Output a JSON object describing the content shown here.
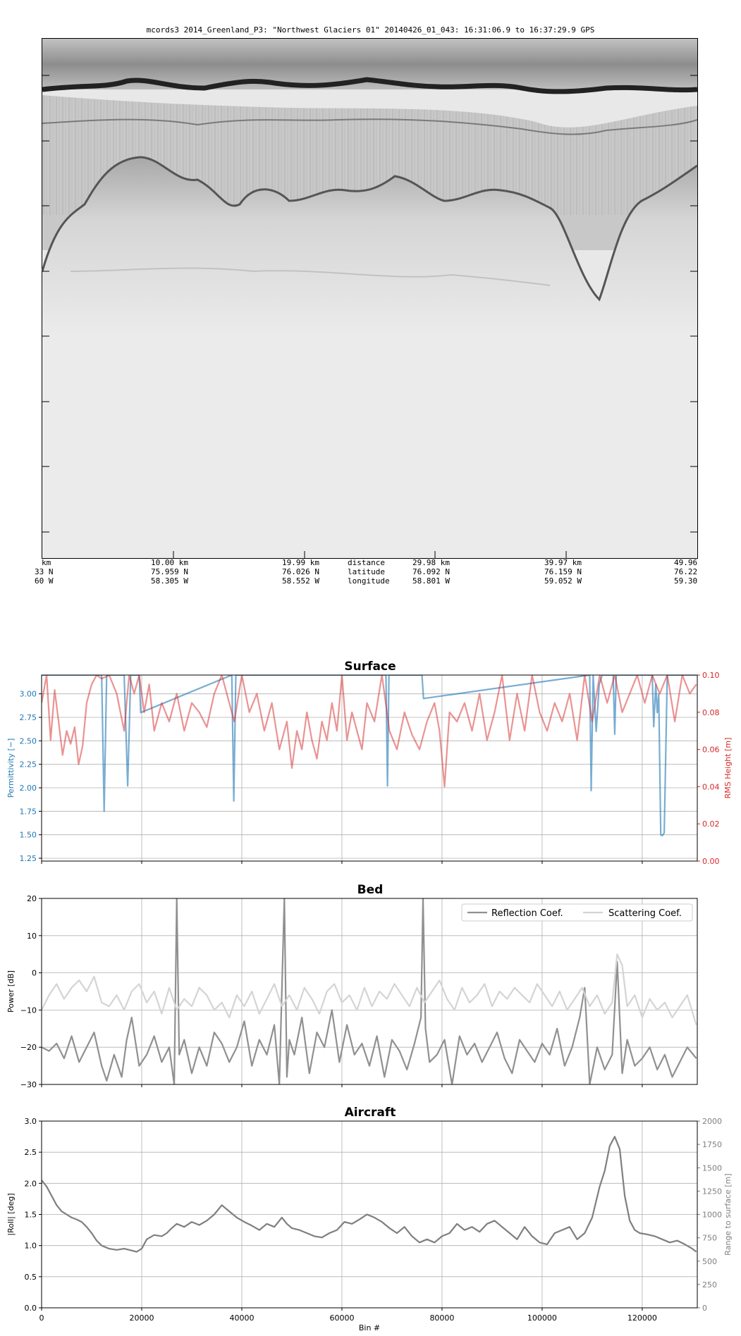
{
  "radargram": {
    "title": "mcords3 2014_Greenland_P3: \"Northwest Glaciers 01\"  20140426_01_043: 16:31:06.9 to 16:37:29.9 GPS",
    "distance_ticks": [
      "km",
      "10.00 km",
      "19.99 km",
      "29.98 km",
      "39.97 km",
      "49.96"
    ],
    "latitude_ticks": [
      "33 N",
      "75.959 N",
      "76.026 N",
      "76.092 N",
      "76.159 N",
      "76.22"
    ],
    "longitude_ticks": [
      "60 W",
      "58.305 W",
      "58.552 W",
      "58.801 W",
      "59.052 W",
      "59.30"
    ],
    "row_labels": [
      "distance",
      "latitude",
      "longitude"
    ]
  },
  "chart_data": [
    {
      "type": "line",
      "title": "Surface",
      "xlabel": "",
      "ylabel": "Permittivity [−]",
      "ylabel_right": "RMS Height [m]",
      "xlim": [
        0,
        131000
      ],
      "ylim": [
        1.22,
        3.2
      ],
      "ylim_right": [
        0.0,
        0.1
      ],
      "yticks": [
        "1.25",
        "1.50",
        "1.75",
        "2.00",
        "2.25",
        "2.50",
        "2.75",
        "3.00"
      ],
      "yticks_right": [
        "0.00",
        "0.02",
        "0.04",
        "0.06",
        "0.08",
        "0.10"
      ],
      "grid": true,
      "colors": {
        "permittivity": "#1f77b4",
        "rms": "#d62728"
      },
      "series": [
        {
          "axis": "left",
          "x": [
            0,
            12000,
            12500,
            13000,
            16500,
            17200,
            17800,
            19500,
            19800,
            38000,
            38400,
            38800,
            68800,
            69100,
            69400,
            76000,
            76300,
            109500,
            109800,
            110200,
            110800,
            111400,
            112000,
            114200,
            114500,
            114800,
            122000,
            122300,
            122700,
            123000,
            123300,
            123700,
            124000,
            124400,
            125000,
            130800
          ],
          "values": [
            3.2,
            3.2,
            1.75,
            3.2,
            3.2,
            2.02,
            3.2,
            3.2,
            2.8,
            3.2,
            1.86,
            3.2,
            3.2,
            2.02,
            3.2,
            3.2,
            2.95,
            3.2,
            1.97,
            3.2,
            2.6,
            3.1,
            3.2,
            3.2,
            2.57,
            3.2,
            3.2,
            2.65,
            3.1,
            2.8,
            3.0,
            1.5,
            1.49,
            1.52,
            3.2,
            3.2
          ]
        },
        {
          "axis": "right",
          "x": [
            0,
            1000,
            1800,
            2600,
            3400,
            4200,
            5000,
            5800,
            6600,
            7400,
            8200,
            9000,
            10000,
            11000,
            12000,
            13500,
            15000,
            16500,
            17500,
            18500,
            19500,
            20500,
            21500,
            22500,
            24000,
            25500,
            27000,
            28500,
            30000,
            31500,
            33000,
            34500,
            36000,
            37500,
            38500,
            40000,
            41500,
            43000,
            44500,
            46000,
            47500,
            49000,
            50000,
            51000,
            52000,
            53000,
            54000,
            55000,
            56000,
            57000,
            58000,
            59000,
            60000,
            61000,
            62000,
            63000,
            64000,
            65000,
            66500,
            68000,
            69500,
            71000,
            72500,
            74000,
            75500,
            77000,
            78500,
            79500,
            80500,
            81500,
            83000,
            84500,
            86000,
            87500,
            89000,
            90500,
            92000,
            93500,
            95000,
            96500,
            98000,
            99500,
            101000,
            102500,
            104000,
            105500,
            107000,
            108500,
            110000,
            111500,
            113000,
            114500,
            116000,
            117500,
            119000,
            120500,
            122000,
            123500,
            125000,
            126500,
            128000,
            129500,
            130800
          ],
          "values": [
            0.085,
            0.1,
            0.065,
            0.092,
            0.075,
            0.057,
            0.07,
            0.063,
            0.072,
            0.052,
            0.062,
            0.085,
            0.095,
            0.1,
            0.098,
            0.1,
            0.09,
            0.07,
            0.1,
            0.09,
            0.1,
            0.08,
            0.095,
            0.07,
            0.085,
            0.075,
            0.09,
            0.07,
            0.085,
            0.08,
            0.072,
            0.09,
            0.1,
            0.085,
            0.075,
            0.1,
            0.08,
            0.09,
            0.07,
            0.085,
            0.06,
            0.075,
            0.05,
            0.07,
            0.06,
            0.08,
            0.065,
            0.055,
            0.075,
            0.065,
            0.085,
            0.07,
            0.1,
            0.065,
            0.08,
            0.07,
            0.06,
            0.085,
            0.075,
            0.1,
            0.07,
            0.06,
            0.08,
            0.068,
            0.06,
            0.075,
            0.085,
            0.07,
            0.04,
            0.08,
            0.075,
            0.085,
            0.07,
            0.09,
            0.065,
            0.08,
            0.1,
            0.065,
            0.09,
            0.07,
            0.1,
            0.08,
            0.07,
            0.085,
            0.075,
            0.09,
            0.065,
            0.1,
            0.075,
            0.1,
            0.085,
            0.1,
            0.08,
            0.09,
            0.1,
            0.085,
            0.1,
            0.09,
            0.1,
            0.075,
            0.1,
            0.09,
            0.095
          ]
        }
      ]
    },
    {
      "type": "line",
      "title": "Bed",
      "xlabel": "",
      "ylabel": "Power [dB]",
      "xlim": [
        0,
        131000
      ],
      "ylim": [
        -30,
        20
      ],
      "yticks": [
        "−30",
        "−20",
        "−10",
        "0",
        "10",
        "20"
      ],
      "grid": true,
      "legend": "top-right",
      "colors": {
        "reflection": "#909090",
        "scattering": "#d4d4d4"
      },
      "series": [
        {
          "name": "Reflection Coef.",
          "x": [
            0,
            1500,
            3000,
            4500,
            6000,
            7500,
            9000,
            10500,
            12000,
            13000,
            14500,
            16000,
            17000,
            18000,
            19500,
            21000,
            22500,
            24000,
            25500,
            26500,
            27000,
            27500,
            28500,
            30000,
            31500,
            33000,
            34500,
            36000,
            37500,
            39000,
            40500,
            42000,
            43500,
            45000,
            46500,
            47500,
            48500,
            49000,
            49500,
            50500,
            52000,
            53500,
            55000,
            56500,
            58000,
            59500,
            61000,
            62500,
            64000,
            65500,
            67000,
            68500,
            70000,
            71500,
            73000,
            74500,
            75800,
            76200,
            76700,
            77500,
            79000,
            80500,
            82000,
            83500,
            85000,
            86500,
            88000,
            89500,
            91000,
            92500,
            94000,
            95500,
            97000,
            98500,
            100000,
            101500,
            103000,
            104500,
            106000,
            107500,
            108500,
            109500,
            111000,
            112500,
            114000,
            115000,
            116000,
            117000,
            118500,
            120000,
            121500,
            123000,
            124500,
            126000,
            127500,
            129000,
            130800
          ],
          "values": [
            -20,
            -21,
            -19,
            -23,
            -17,
            -24,
            -20,
            -16,
            -25,
            -29,
            -22,
            -28,
            -18,
            -12,
            -25,
            -22,
            -17,
            -24,
            -20,
            -30,
            20,
            -22,
            -18,
            -27,
            -20,
            -25,
            -16,
            -19,
            -24,
            -20,
            -13,
            -25,
            -18,
            -22,
            -14,
            -30,
            20,
            -28,
            -18,
            -22,
            -12,
            -27,
            -16,
            -20,
            -10,
            -24,
            -14,
            -22,
            -19,
            -25,
            -17,
            -28,
            -18,
            -21,
            -26,
            -19,
            -12,
            20,
            -15,
            -24,
            -22,
            -18,
            -30,
            -17,
            -22,
            -19,
            -24,
            -20,
            -16,
            -23,
            -27,
            -18,
            -21,
            -24,
            -19,
            -22,
            -15,
            -25,
            -20,
            -12,
            -4,
            -30,
            -20,
            -26,
            -22,
            3,
            -27,
            -18,
            -25,
            -23,
            -20,
            -26,
            -22,
            -28,
            -24,
            -20,
            -23
          ]
        },
        {
          "name": "Scattering Coef.",
          "x": [
            0,
            1500,
            3000,
            4500,
            6000,
            7500,
            9000,
            10500,
            12000,
            13500,
            15000,
            16500,
            18000,
            19500,
            21000,
            22500,
            24000,
            25500,
            27000,
            28500,
            30000,
            31500,
            33000,
            34500,
            36000,
            37500,
            39000,
            40500,
            42000,
            43500,
            45000,
            46500,
            48000,
            49500,
            51000,
            52500,
            54000,
            55500,
            57000,
            58500,
            60000,
            61500,
            63000,
            64500,
            66000,
            67500,
            69000,
            70500,
            72000,
            73500,
            75000,
            76500,
            78000,
            79500,
            81000,
            82500,
            84000,
            85500,
            87000,
            88500,
            90000,
            91500,
            93000,
            94500,
            96000,
            97500,
            99000,
            100500,
            102000,
            103500,
            105000,
            106500,
            108000,
            109500,
            111000,
            112500,
            114000,
            115000,
            116000,
            117000,
            118500,
            120000,
            121500,
            123000,
            124500,
            126000,
            127500,
            129000,
            130800
          ],
          "values": [
            -10,
            -6,
            -3,
            -7,
            -4,
            -2,
            -5,
            -1,
            -8,
            -9,
            -6,
            -10,
            -5,
            -3,
            -8,
            -5,
            -11,
            -4,
            -10,
            -7,
            -9,
            -4,
            -6,
            -10,
            -8,
            -12,
            -6,
            -9,
            -5,
            -11,
            -7,
            -3,
            -9,
            -6,
            -10,
            -4,
            -7,
            -11,
            -5,
            -3,
            -8,
            -6,
            -10,
            -4,
            -9,
            -5,
            -7,
            -3,
            -6,
            -9,
            -4,
            -8,
            -5,
            -2,
            -7,
            -10,
            -4,
            -8,
            -6,
            -3,
            -9,
            -5,
            -7,
            -4,
            -6,
            -8,
            -3,
            -6,
            -9,
            -5,
            -10,
            -7,
            -4,
            -9,
            -6,
            -11,
            -8,
            5,
            2,
            -9,
            -6,
            -12,
            -7,
            -10,
            -8,
            -12,
            -9,
            -6,
            -14
          ]
        }
      ]
    },
    {
      "type": "line",
      "title": "Aircraft",
      "xlabel": "Bin #",
      "ylabel": "|Roll| [deg]",
      "ylabel_right": "Range to surface [m]",
      "xlim": [
        0,
        131000
      ],
      "ylim": [
        0,
        3.0
      ],
      "ylim_right": [
        0,
        2000
      ],
      "xticks": [
        "0",
        "20000",
        "40000",
        "60000",
        "80000",
        "100000",
        "120000"
      ],
      "yticks": [
        "0.0",
        "0.5",
        "1.0",
        "1.5",
        "2.0",
        "2.5",
        "3.0"
      ],
      "yticks_right": [
        "0",
        "250",
        "500",
        "750",
        "1000",
        "1250",
        "1500",
        "1750",
        "2000"
      ],
      "grid": true,
      "colors": {
        "roll": "#7f7f7f"
      },
      "series": [
        {
          "axis": "left",
          "x": [
            0,
            1000,
            2000,
            3000,
            4000,
            5000,
            6000,
            7000,
            8000,
            9000,
            10000,
            11000,
            12000,
            13500,
            15000,
            16500,
            18000,
            19000,
            20000,
            21000,
            22500,
            24000,
            25000,
            26000,
            27000,
            28500,
            30000,
            31500,
            33000,
            34500,
            36000,
            37500,
            39000,
            40500,
            42000,
            43500,
            45000,
            46500,
            48000,
            49000,
            50000,
            51500,
            53000,
            54500,
            56000,
            57500,
            59000,
            60500,
            62000,
            63500,
            65000,
            66500,
            68000,
            69500,
            71000,
            72500,
            74000,
            75500,
            77000,
            78500,
            80000,
            81500,
            83000,
            84500,
            86000,
            87500,
            89000,
            90500,
            92000,
            93500,
            95000,
            96500,
            98000,
            99500,
            101000,
            102500,
            104000,
            105500,
            107000,
            108500,
            110000,
            111500,
            112500,
            113500,
            114500,
            115500,
            116500,
            117500,
            118500,
            119500,
            121000,
            122500,
            124000,
            125500,
            127000,
            128500,
            130000,
            130800
          ],
          "values": [
            2.05,
            1.95,
            1.8,
            1.65,
            1.55,
            1.5,
            1.45,
            1.42,
            1.38,
            1.3,
            1.2,
            1.08,
            1.0,
            0.95,
            0.93,
            0.95,
            0.92,
            0.9,
            0.95,
            1.1,
            1.17,
            1.15,
            1.2,
            1.28,
            1.35,
            1.3,
            1.38,
            1.33,
            1.4,
            1.5,
            1.65,
            1.55,
            1.45,
            1.38,
            1.32,
            1.25,
            1.35,
            1.3,
            1.45,
            1.35,
            1.28,
            1.25,
            1.2,
            1.15,
            1.13,
            1.2,
            1.25,
            1.38,
            1.35,
            1.42,
            1.5,
            1.45,
            1.38,
            1.28,
            1.2,
            1.3,
            1.15,
            1.05,
            1.1,
            1.05,
            1.15,
            1.2,
            1.35,
            1.25,
            1.3,
            1.22,
            1.35,
            1.4,
            1.3,
            1.2,
            1.1,
            1.3,
            1.15,
            1.05,
            1.02,
            1.2,
            1.25,
            1.3,
            1.1,
            1.2,
            1.45,
            1.95,
            2.2,
            2.6,
            2.75,
            2.55,
            1.8,
            1.4,
            1.25,
            1.2,
            1.18,
            1.15,
            1.1,
            1.05,
            1.08,
            1.02,
            0.95,
            0.9
          ]
        }
      ]
    }
  ]
}
